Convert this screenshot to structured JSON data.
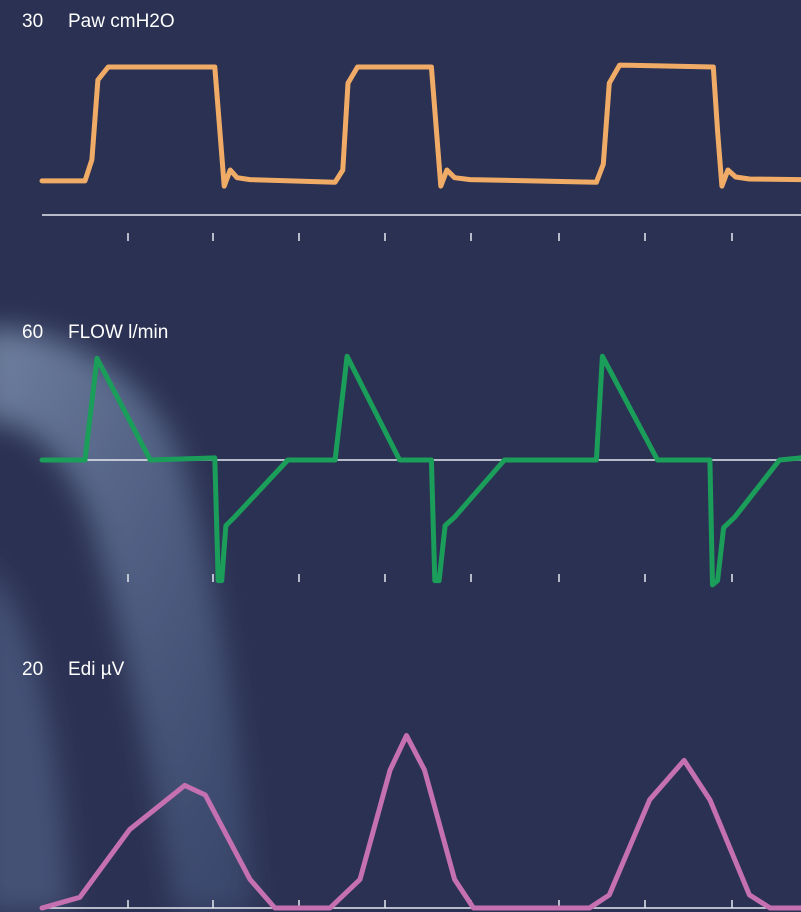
{
  "chart_data": [
    {
      "type": "line",
      "ylabel": "Paw cmH2O",
      "ylim": [
        0,
        30
      ],
      "yticks": [
        30
      ],
      "xlim": [
        0,
        8.83
      ],
      "x": [
        0,
        0.5,
        0.58,
        0.65,
        0.77,
        2.01,
        2.07,
        2.12,
        2.19,
        2.27,
        2.42,
        3.41,
        3.5,
        3.56,
        3.67,
        4.53,
        4.59,
        4.64,
        4.71,
        4.8,
        4.98,
        6.45,
        6.53,
        6.6,
        6.72,
        7.81,
        7.86,
        7.91,
        7.98,
        8.07,
        8.23,
        8.83
      ],
      "series": [
        {
          "color": "#f0ac66",
          "values": [
            5.3,
            5.3,
            8.6,
            21,
            23,
            23,
            13,
            4.5,
            7,
            5.8,
            5.5,
            5.1,
            7,
            20.5,
            23,
            23,
            13,
            4.5,
            7,
            5.8,
            5.5,
            5.1,
            7.9,
            20.5,
            23.3,
            23,
            13,
            4.5,
            7,
            5.9,
            5.6,
            5.5
          ]
        }
      ]
    },
    {
      "type": "line",
      "ylabel": "FLOW l/min",
      "ylim": [
        -60,
        60
      ],
      "yticks": [
        60
      ],
      "xlim": [
        0,
        8.83
      ],
      "x": [
        0,
        0.5,
        0.64,
        1.26,
        2.01,
        2.05,
        2.09,
        2.14,
        2.24,
        2.86,
        3.41,
        3.55,
        4.16,
        4.53,
        4.57,
        4.62,
        4.69,
        4.8,
        5.38,
        6.45,
        6.52,
        7.16,
        7.77,
        7.8,
        7.86,
        7.93,
        8.06,
        8.58,
        8.83
      ],
      "series": [
        {
          "color": "#1a9e5a",
          "values": [
            0,
            0,
            48,
            0,
            1,
            -57,
            -57,
            -31,
            -27,
            0,
            0,
            49,
            0,
            0,
            -57,
            -57,
            -31,
            -27,
            0,
            0,
            49,
            0,
            0,
            -59,
            -57,
            -32,
            -27,
            0,
            1
          ]
        }
      ]
    },
    {
      "type": "line",
      "ylabel": "Edi µV",
      "ylim": [
        0,
        20
      ],
      "yticks": [
        20
      ],
      "xlim": [
        0,
        8.83
      ],
      "x": [
        0,
        0.44,
        1.02,
        1.66,
        1.9,
        2.42,
        2.71,
        3.35,
        3.7,
        4.05,
        4.24,
        4.45,
        4.8,
        5.02,
        6.37,
        6.6,
        7.07,
        7.47,
        7.77,
        8.23,
        8.47,
        8.83
      ],
      "series": [
        {
          "color": "#c570b0",
          "values": [
            0,
            0.9,
            6.6,
            10.3,
            9.5,
            2.4,
            0,
            0,
            2.4,
            11.6,
            14.5,
            11.6,
            2.4,
            0,
            0,
            1.1,
            9.1,
            12.4,
            9.1,
            1.1,
            0,
            0
          ]
        }
      ]
    }
  ]
}
